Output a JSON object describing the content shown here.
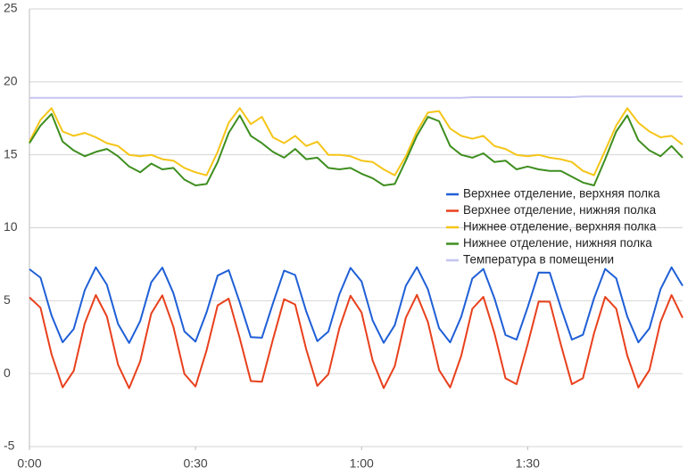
{
  "chart_data": {
    "type": "line",
    "x": [
      0,
      2,
      4,
      6,
      8,
      10,
      12,
      14,
      16,
      18,
      20,
      22,
      24,
      26,
      28,
      30,
      32,
      34,
      36,
      38,
      40,
      42,
      44,
      46,
      48,
      50,
      52,
      54,
      56,
      58,
      60,
      62,
      64,
      66,
      68,
      70,
      72,
      74,
      76,
      78,
      80,
      82,
      84,
      86,
      88,
      90,
      92,
      94,
      96,
      98,
      100,
      102,
      104,
      106,
      108,
      110,
      112,
      114,
      116,
      118
    ],
    "xlim": [
      0,
      118
    ],
    "xticks": [
      {
        "value": 0,
        "label": "0:00"
      },
      {
        "value": 30,
        "label": "0:30"
      },
      {
        "value": 60,
        "label": "1:00"
      },
      {
        "value": 90,
        "label": "1:30"
      }
    ],
    "ylim": [
      -5,
      25
    ],
    "yticks": [
      -5,
      0,
      5,
      10,
      15,
      20,
      25
    ],
    "grid": true,
    "legend": "right",
    "series": [
      {
        "name": "Верхнее отделение, верхняя полка",
        "color": "#1f5fd6",
        "values": [
          7.16,
          6.58,
          3.98,
          2.15,
          3.06,
          5.72,
          7.29,
          6.09,
          3.41,
          2.1,
          3.6,
          6.26,
          7.27,
          5.52,
          2.89,
          2.2,
          4.2,
          6.72,
          7.09,
          4.88,
          2.5,
          2.46,
          4.82,
          7.06,
          6.76,
          4.26,
          2.23,
          2.88,
          5.45,
          7.25,
          6.32,
          3.65,
          2.11,
          3.32,
          6.02,
          7.3,
          5.78,
          3.11,
          2.14,
          3.9,
          6.52,
          7.18,
          5.17,
          2.65,
          2.33,
          4.54,
          6.93,
          6.92,
          4.54,
          2.33,
          2.66,
          5.16,
          7.18,
          6.53,
          3.91,
          2.14,
          3.1,
          5.78,
          7.29,
          6.02
        ]
      },
      {
        "name": "Верхнее отделение, нижняя полка",
        "color": "#e8401c",
        "values": [
          5.23,
          4.52,
          1.32,
          -0.94,
          0.19,
          3.45,
          5.39,
          3.92,
          0.61,
          -1.0,
          0.84,
          4.12,
          5.36,
          3.21,
          -0.02,
          -0.88,
          1.59,
          4.68,
          5.14,
          2.43,
          -0.51,
          -0.56,
          2.35,
          5.1,
          4.74,
          1.66,
          -0.84,
          -0.04,
          3.13,
          5.34,
          4.19,
          0.9,
          -0.99,
          0.51,
          3.83,
          5.4,
          3.53,
          0.24,
          -0.95,
          1.22,
          4.44,
          5.26,
          2.78,
          -0.32,
          -0.72,
          2.0,
          4.94,
          4.93,
          2.0,
          -0.72,
          -0.31,
          2.76,
          5.26,
          4.45,
          1.23,
          -0.95,
          0.24,
          3.53,
          5.39,
          3.82
        ]
      },
      {
        "name": "Нижнее отделение, верхняя полка",
        "color": "#f5c518",
        "values": [
          15.9,
          17.4,
          18.2,
          16.6,
          16.3,
          16.5,
          16.2,
          15.8,
          15.6,
          15.0,
          14.9,
          15.0,
          14.7,
          14.6,
          14.1,
          13.8,
          13.6,
          15.2,
          17.2,
          18.2,
          17.1,
          17.6,
          16.2,
          15.8,
          16.3,
          15.6,
          15.9,
          15.0,
          15.0,
          14.9,
          14.6,
          14.5,
          14.0,
          13.6,
          14.9,
          16.6,
          17.9,
          18.0,
          16.8,
          16.3,
          16.1,
          16.3,
          15.6,
          15.4,
          15.0,
          14.9,
          15.0,
          14.8,
          14.7,
          14.5,
          13.9,
          13.6,
          15.3,
          17.0,
          18.2,
          17.2,
          16.6,
          16.2,
          16.3,
          15.7
        ]
      },
      {
        "name": "Нижнее отделение, нижняя полка",
        "color": "#3e8e1e",
        "values": [
          15.8,
          17.0,
          17.8,
          15.9,
          15.3,
          14.9,
          15.2,
          15.4,
          14.9,
          14.2,
          13.8,
          14.4,
          14.0,
          14.1,
          13.3,
          12.9,
          13.0,
          14.5,
          16.5,
          17.7,
          16.3,
          15.8,
          15.2,
          14.8,
          15.4,
          14.7,
          14.8,
          14.1,
          14.0,
          14.1,
          13.7,
          13.4,
          12.9,
          13.0,
          14.6,
          16.3,
          17.6,
          17.3,
          15.6,
          15.0,
          14.8,
          15.1,
          14.5,
          14.6,
          14.0,
          14.2,
          14.0,
          13.9,
          13.9,
          13.5,
          13.1,
          12.9,
          14.7,
          16.6,
          17.7,
          16.0,
          15.3,
          14.9,
          15.6,
          14.8
        ]
      },
      {
        "name": "Температура в помещении",
        "color": "#c4c4f0",
        "values": [
          18.9,
          18.9,
          18.9,
          18.9,
          18.9,
          18.9,
          18.9,
          18.9,
          18.9,
          18.9,
          18.9,
          18.9,
          18.9,
          18.9,
          18.9,
          18.9,
          18.9,
          18.9,
          18.9,
          18.9,
          18.9,
          18.9,
          18.9,
          18.9,
          18.9,
          18.9,
          18.9,
          18.9,
          18.9,
          18.9,
          18.9,
          18.9,
          18.9,
          18.9,
          18.9,
          18.9,
          18.9,
          18.9,
          18.9,
          18.9,
          18.95,
          18.95,
          18.95,
          18.95,
          18.95,
          18.95,
          18.95,
          18.95,
          18.95,
          18.95,
          19.0,
          19.0,
          19.0,
          19.0,
          19.0,
          19.0,
          19.0,
          19.0,
          19.0,
          19.0
        ]
      }
    ]
  }
}
